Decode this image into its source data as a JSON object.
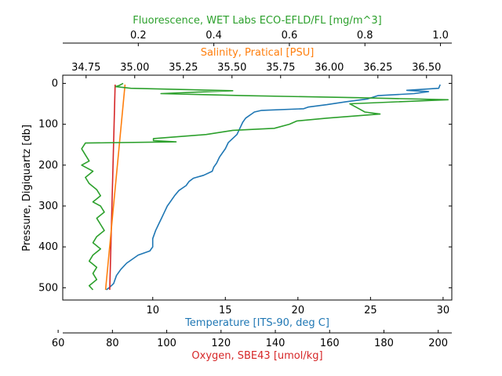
{
  "chart_data": {
    "type": "line",
    "axes": {
      "pressure": {
        "label": "Pressure, Digiquartz [db]",
        "range": [
          530,
          -20
        ],
        "ticks": [
          0,
          100,
          200,
          300,
          400,
          500
        ],
        "color": "#000000"
      },
      "temperature": {
        "label": "Temperature [ITS-90, deg C]",
        "range": [
          3.8,
          30.6
        ],
        "ticks": [
          10,
          15,
          20,
          25,
          30
        ],
        "color": "#1f77b4"
      },
      "oxygen": {
        "label": "Oxygen, SBE43 [umol/kg]",
        "range": [
          61.7,
          205
        ],
        "ticks": [
          60,
          80,
          100,
          120,
          140,
          160,
          180,
          200
        ],
        "color": "#d62728"
      },
      "salinity": {
        "label": "Salinity, Pratical [PSU]",
        "range": [
          34.63,
          36.63
        ],
        "ticks": [
          "34.75",
          "35.00",
          "35.25",
          "35.50",
          "35.75",
          "36.00",
          "36.25",
          "36.50"
        ],
        "color": "#ff7f0e"
      },
      "fluorescence": {
        "label": "Fluorescence, WET Labs ECO-EFLD/FL [mg/m^3]",
        "range": [
          0.0,
          1.03
        ],
        "ticks": [
          "0.2",
          "0.4",
          "0.6",
          "0.8",
          "1.0"
        ],
        "color": "#2ca02c"
      }
    },
    "series": [
      {
        "axis": "temperature",
        "color": "#1f77b4",
        "pressure": [
          3,
          12,
          17,
          20,
          25,
          30,
          38,
          45,
          52,
          58,
          62,
          66,
          70,
          75,
          80,
          85,
          95,
          110,
          125,
          135,
          145,
          160,
          170,
          180,
          195,
          205,
          215,
          225,
          232,
          240,
          250,
          262,
          275,
          290,
          300,
          315,
          330,
          345,
          360,
          380,
          400,
          410,
          420,
          440,
          455,
          470,
          490,
          500,
          505
        ],
        "values": [
          29.8,
          29.7,
          27.5,
          29.0,
          28.0,
          25.5,
          24.8,
          23.3,
          22.0,
          20.7,
          20.4,
          17.5,
          17.0,
          16.8,
          16.6,
          16.4,
          16.2,
          16.0,
          15.8,
          15.5,
          15.2,
          15.0,
          14.8,
          14.6,
          14.4,
          14.2,
          14.1,
          13.5,
          12.8,
          12.5,
          12.3,
          11.8,
          11.5,
          11.2,
          11.0,
          10.8,
          10.6,
          10.4,
          10.2,
          10.0,
          10.0,
          9.8,
          9.0,
          8.2,
          7.8,
          7.5,
          7.3,
          7.0,
          6.8
        ]
      },
      {
        "axis": "oxygen",
        "color": "#d62728",
        "pressure": [
          3,
          505
        ],
        "values": [
          81,
          79
        ]
      },
      {
        "axis": "salinity",
        "color": "#ff7f0e",
        "pressure": [
          3,
          505
        ],
        "values": [
          34.95,
          34.85
        ]
      },
      {
        "axis": "fluorescence",
        "color": "#2ca02c",
        "pressure": [
          0,
          5,
          8,
          12,
          18,
          25,
          30,
          35,
          40,
          50,
          60,
          70,
          75,
          85,
          92,
          100,
          110,
          115,
          125,
          135,
          140,
          143,
          146,
          160,
          175,
          190,
          200,
          215,
          230,
          245,
          260,
          275,
          290,
          300,
          315,
          330,
          345,
          360,
          375,
          390,
          405,
          420,
          435,
          450,
          465,
          480,
          495,
          505
        ],
        "values": [
          0.16,
          0.15,
          0.14,
          0.18,
          0.45,
          0.26,
          0.48,
          0.78,
          1.02,
          0.76,
          0.78,
          0.8,
          0.84,
          0.7,
          0.62,
          0.6,
          0.56,
          0.45,
          0.38,
          0.24,
          0.24,
          0.3,
          0.06,
          0.05,
          0.06,
          0.07,
          0.05,
          0.08,
          0.06,
          0.07,
          0.09,
          0.1,
          0.08,
          0.1,
          0.11,
          0.09,
          0.1,
          0.11,
          0.09,
          0.08,
          0.1,
          0.08,
          0.07,
          0.09,
          0.08,
          0.09,
          0.07,
          0.08
        ]
      }
    ],
    "grid": false,
    "legend": "none"
  }
}
